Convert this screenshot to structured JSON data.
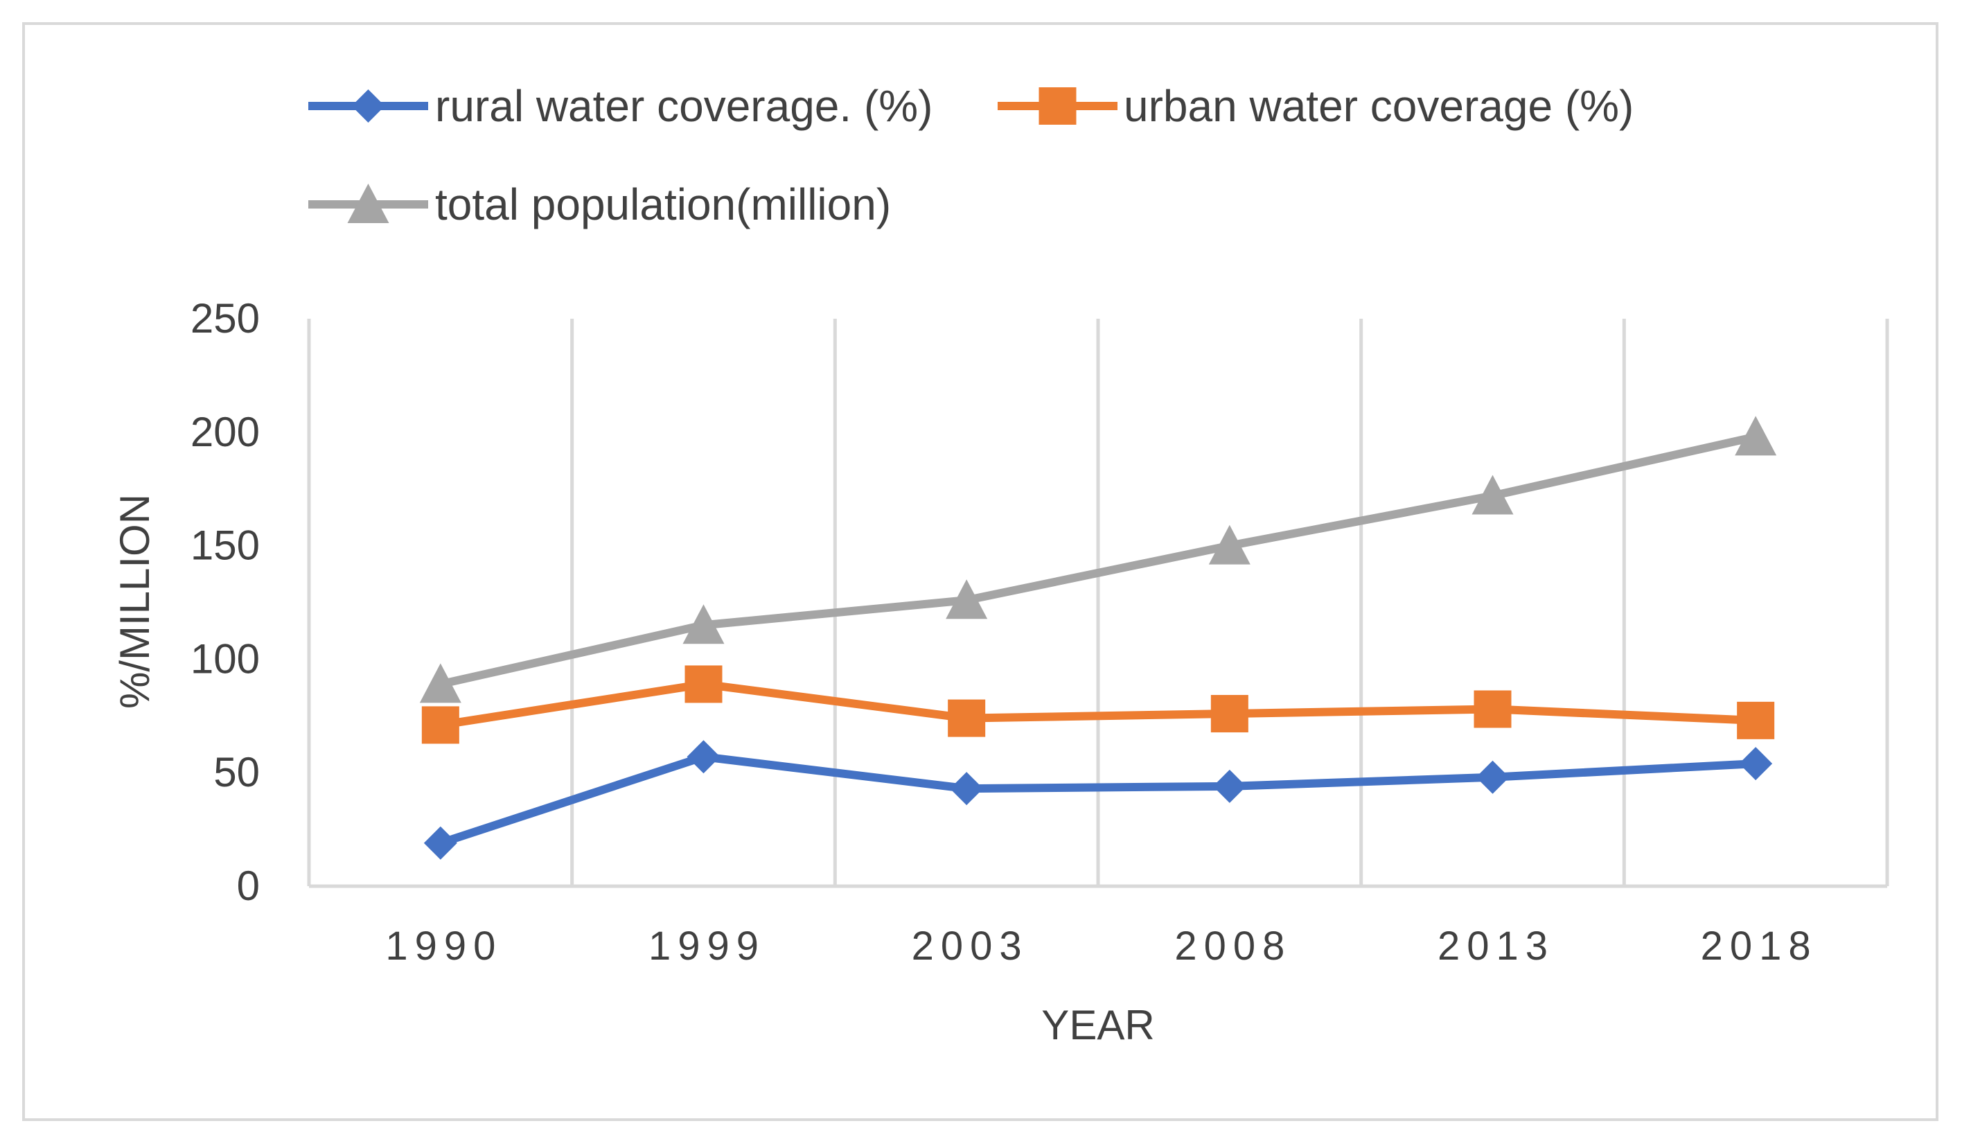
{
  "chart_data": {
    "type": "line",
    "title": "",
    "xlabel": "YEAR",
    "ylabel": "%/MILLION",
    "categories": [
      "1990",
      "1999",
      "2003",
      "2008",
      "2013",
      "2018"
    ],
    "ylim": [
      0,
      250
    ],
    "yticks": [
      "0",
      "50",
      "100",
      "150",
      "200",
      "250"
    ],
    "grid": "vertical",
    "legend_position": "top",
    "series": [
      {
        "name": "rural water coverage. (%)",
        "color": "#4472c4",
        "marker": "diamond",
        "values": [
          19,
          57,
          43,
          44,
          48,
          54
        ]
      },
      {
        "name": "urban water coverage (%)",
        "color": "#ed7d31",
        "marker": "square",
        "values": [
          71,
          89,
          74,
          76,
          78,
          73
        ]
      },
      {
        "name": "total population(million)",
        "color": "#a5a5a5",
        "marker": "triangle",
        "values": [
          89,
          115,
          126,
          150,
          172,
          198
        ]
      }
    ]
  }
}
